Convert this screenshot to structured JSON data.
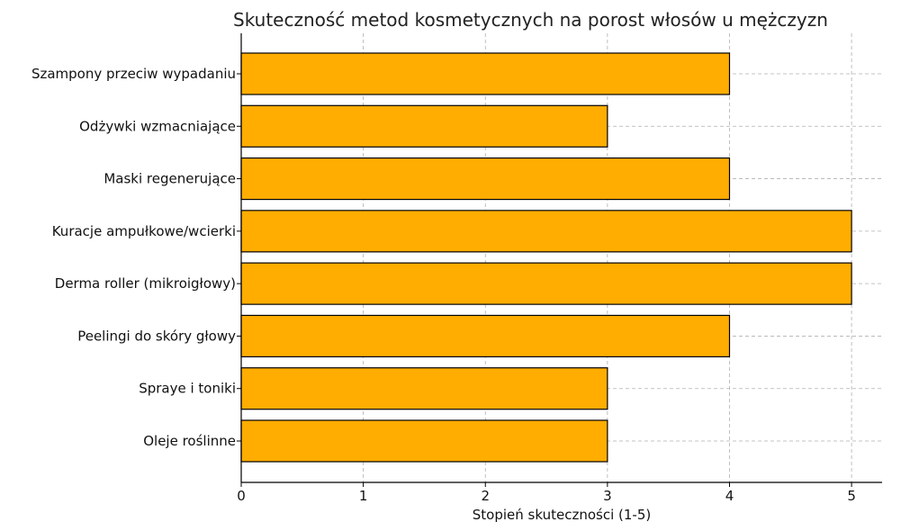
{
  "chart_data": {
    "type": "bar",
    "orientation": "horizontal",
    "title": "Skuteczność metod kosmetycznych na porost włosów u mężczyzn",
    "xlabel": "Stopień skuteczności (1-5)",
    "ylabel": "",
    "categories": [
      "Szampony przeciw wypadaniu",
      "Odżywki wzmacniające",
      "Maski regenerujące",
      "Kuracje ampułkowe/wcierki",
      "Derma roller (mikroigłowy)",
      "Peelingi do skóry głowy",
      "Spraye i toniki",
      "Oleje roślinne"
    ],
    "values": [
      4,
      3,
      4,
      5,
      5,
      4,
      3,
      3
    ],
    "xlim": [
      0,
      5.25
    ],
    "xticks": [
      "0",
      "1",
      "2",
      "3",
      "4",
      "5"
    ],
    "grid": true,
    "legend": "none",
    "colors": {
      "bar_fill": "#FFAD00",
      "bar_edge": "#000000",
      "grid": "#b0b0b0",
      "axis": "#000000"
    }
  }
}
